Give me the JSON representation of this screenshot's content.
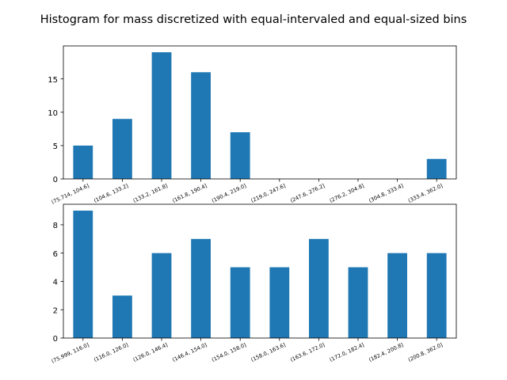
{
  "title": "Histogram for mass discretized with equal-intervaled and equal-sized bins",
  "colors": {
    "bar": "#1f77b4",
    "axis": "#000000",
    "background": "#ffffff"
  },
  "chart_data": [
    {
      "type": "bar",
      "title": "",
      "xlabel": "",
      "ylabel": "",
      "categories": [
        "(75.714, 104.6]",
        "(104.6, 133.2]",
        "(133.2, 161.8]",
        "(161.8, 190.4]",
        "(190.4, 219.0]",
        "(219.0, 247.6]",
        "(247.6, 276.2]",
        "(276.2, 304.8]",
        "(304.8, 333.4]",
        "(333.4, 362.0]"
      ],
      "values": [
        5,
        9,
        19,
        16,
        7,
        0,
        0,
        0,
        0,
        3
      ],
      "ylim": [
        0,
        19.95
      ],
      "yticks": [
        0,
        5,
        10,
        15
      ],
      "grid": false,
      "legend": "none"
    },
    {
      "type": "bar",
      "title": "",
      "xlabel": "",
      "ylabel": "",
      "categories": [
        "(75.999, 116.0]",
        "(116.0, 126.0]",
        "(126.0, 146.4]",
        "(146.4, 154.0]",
        "(154.0, 158.0]",
        "(158.0, 163.6]",
        "(163.6, 172.0]",
        "(172.0, 182.4]",
        "(182.4, 200.8]",
        "(200.8, 362.0]"
      ],
      "values": [
        9,
        3,
        6,
        7,
        5,
        5,
        7,
        5,
        6,
        6
      ],
      "ylim": [
        0,
        9.45
      ],
      "yticks": [
        0,
        2,
        4,
        6,
        8
      ],
      "grid": false,
      "legend": "none"
    }
  ]
}
